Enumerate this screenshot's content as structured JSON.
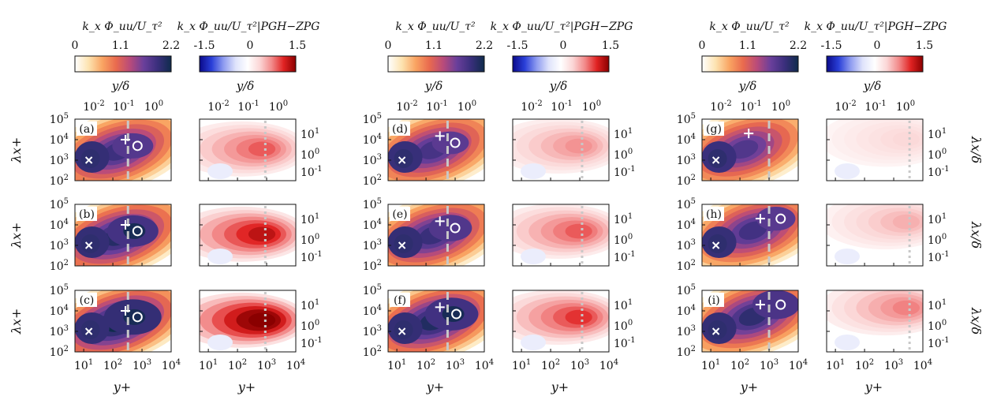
{
  "figure": {
    "colorbars": {
      "spectrum": {
        "label": "k_x Φ_uu/U_τ²",
        "ticks": [
          "0",
          "1.1",
          "2.2"
        ],
        "range": [
          0,
          2.2
        ],
        "colors": [
          "#ffffff",
          "#fde3b0",
          "#f9a462",
          "#e96a4e",
          "#b94b7a",
          "#6a3f9b",
          "#3b2f7d",
          "#0f2b4c"
        ]
      },
      "difference": {
        "label": "k_x Φ_uu/U_τ²|PGH−ZPG",
        "ticks": [
          "-1.5",
          "0",
          "1.5"
        ],
        "range": [
          -1.5,
          1.5
        ],
        "colors": [
          "#0a0a8a",
          "#2a3fd8",
          "#8f9cf0",
          "#dfe3fb",
          "#ffffff",
          "#fbd6d6",
          "#f28a8a",
          "#e02222",
          "#8a0000"
        ]
      }
    },
    "axis_text": {
      "top_xlabel": "y/δ",
      "top_ticks": [
        "10",
        "10",
        "10"
      ],
      "top_tick_exps": [
        "-2",
        "-1",
        "0"
      ],
      "bottom_xlabel": "y+",
      "bottom_ticks": [
        "10",
        "10",
        "10",
        "10"
      ],
      "bottom_tick_exps": [
        "1",
        "2",
        "3",
        "4"
      ],
      "left_ylabel": "λx+",
      "left_ticks": [
        "10",
        "10",
        "10",
        "10"
      ],
      "left_tick_exps": [
        "2",
        "3",
        "4",
        "5"
      ],
      "right_ylabel": "λx/δ",
      "right_ticks": [
        "10",
        "10",
        "10"
      ],
      "right_tick_exps": [
        "-1",
        "0",
        "1"
      ]
    },
    "panel_labels": [
      "(a)",
      "(b)",
      "(c)",
      "(d)",
      "(e)",
      "(f)",
      "(g)",
      "(h)",
      "(i)"
    ]
  },
  "chart_data": {
    "type": "heatmap",
    "layout": "3 groups × 3 rows; each group has a spectrum panel and a difference panel",
    "x_axis": {
      "label": "y+",
      "scale": "log",
      "range": [
        5,
        10000
      ]
    },
    "y_axis": {
      "label": "λx+",
      "scale": "log",
      "range": [
        100,
        100000
      ]
    },
    "secondary_x": {
      "label": "y/δ",
      "scale": "log"
    },
    "secondary_y": {
      "label": "λx/δ",
      "scale": "log"
    },
    "panels": [
      {
        "label": "(a)",
        "inner_peak": {
          "y_plus": 15,
          "lambda_plus": 1000
        },
        "outer_peak": {
          "y_plus": 700,
          "lambda_plus": 5000
        },
        "plus_marker": {
          "y_plus": 270,
          "lambda_plus": 10000
        },
        "dashed_line_y_plus": 330,
        "dotted_line_y_plus": 900,
        "spectrum_intensity": 1.0,
        "difference_intensity": 0.6
      },
      {
        "label": "(b)",
        "inner_peak": {
          "y_plus": 15,
          "lambda_plus": 1000
        },
        "outer_peak": {
          "y_plus": 700,
          "lambda_plus": 5000
        },
        "plus_marker": {
          "y_plus": 270,
          "lambda_plus": 10000
        },
        "dashed_line_y_plus": 330,
        "dotted_line_y_plus": 900,
        "spectrum_intensity": 1.25,
        "difference_intensity": 0.85
      },
      {
        "label": "(c)",
        "inner_peak": {
          "y_plus": 15,
          "lambda_plus": 1000
        },
        "outer_peak": {
          "y_plus": 700,
          "lambda_plus": 5000
        },
        "plus_marker": {
          "y_plus": 270,
          "lambda_plus": 10000
        },
        "dashed_line_y_plus": 330,
        "dotted_line_y_plus": 900,
        "spectrum_intensity": 1.5,
        "difference_intensity": 1.1
      },
      {
        "label": "(d)",
        "inner_peak": {
          "y_plus": 15,
          "lambda_plus": 1000
        },
        "outer_peak": {
          "y_plus": 1000,
          "lambda_plus": 7000
        },
        "plus_marker": {
          "y_plus": 300,
          "lambda_plus": 15000
        },
        "dashed_line_y_plus": 550,
        "dotted_line_y_plus": 1200,
        "spectrum_intensity": 0.9,
        "difference_intensity": 0.45
      },
      {
        "label": "(e)",
        "inner_peak": {
          "y_plus": 15,
          "lambda_plus": 1000
        },
        "outer_peak": {
          "y_plus": 1000,
          "lambda_plus": 7000
        },
        "plus_marker": {
          "y_plus": 300,
          "lambda_plus": 15000
        },
        "dashed_line_y_plus": 550,
        "dotted_line_y_plus": 1200,
        "spectrum_intensity": 1.05,
        "difference_intensity": 0.6
      },
      {
        "label": "(f)",
        "inner_peak": {
          "y_plus": 15,
          "lambda_plus": 1000
        },
        "outer_peak": {
          "y_plus": 1100,
          "lambda_plus": 7000
        },
        "plus_marker": {
          "y_plus": 300,
          "lambda_plus": 15000
        },
        "dashed_line_y_plus": 550,
        "dotted_line_y_plus": 1200,
        "spectrum_intensity": 1.3,
        "difference_intensity": 0.7
      },
      {
        "label": "(g)",
        "inner_peak": {
          "y_plus": 15,
          "lambda_plus": 1000
        },
        "outer_peak": null,
        "plus_marker": {
          "y_plus": 200,
          "lambda_plus": 20000
        },
        "dashed_line_y_plus": 1000,
        "dotted_line_y_plus": 3500,
        "spectrum_intensity": 0.8,
        "difference_intensity": 0.2
      },
      {
        "label": "(h)",
        "inner_peak": {
          "y_plus": 15,
          "lambda_plus": 1000
        },
        "outer_peak": {
          "y_plus": 2500,
          "lambda_plus": 20000
        },
        "plus_marker": {
          "y_plus": 500,
          "lambda_plus": 20000
        },
        "dashed_line_y_plus": 1000,
        "dotted_line_y_plus": 3500,
        "spectrum_intensity": 0.95,
        "difference_intensity": 0.35
      },
      {
        "label": "(i)",
        "inner_peak": {
          "y_plus": 15,
          "lambda_plus": 1000
        },
        "outer_peak": {
          "y_plus": 2500,
          "lambda_plus": 20000
        },
        "plus_marker": {
          "y_plus": 500,
          "lambda_plus": 20000
        },
        "dashed_line_y_plus": 1000,
        "dotted_line_y_plus": 3500,
        "spectrum_intensity": 1.15,
        "difference_intensity": 0.5
      }
    ]
  }
}
